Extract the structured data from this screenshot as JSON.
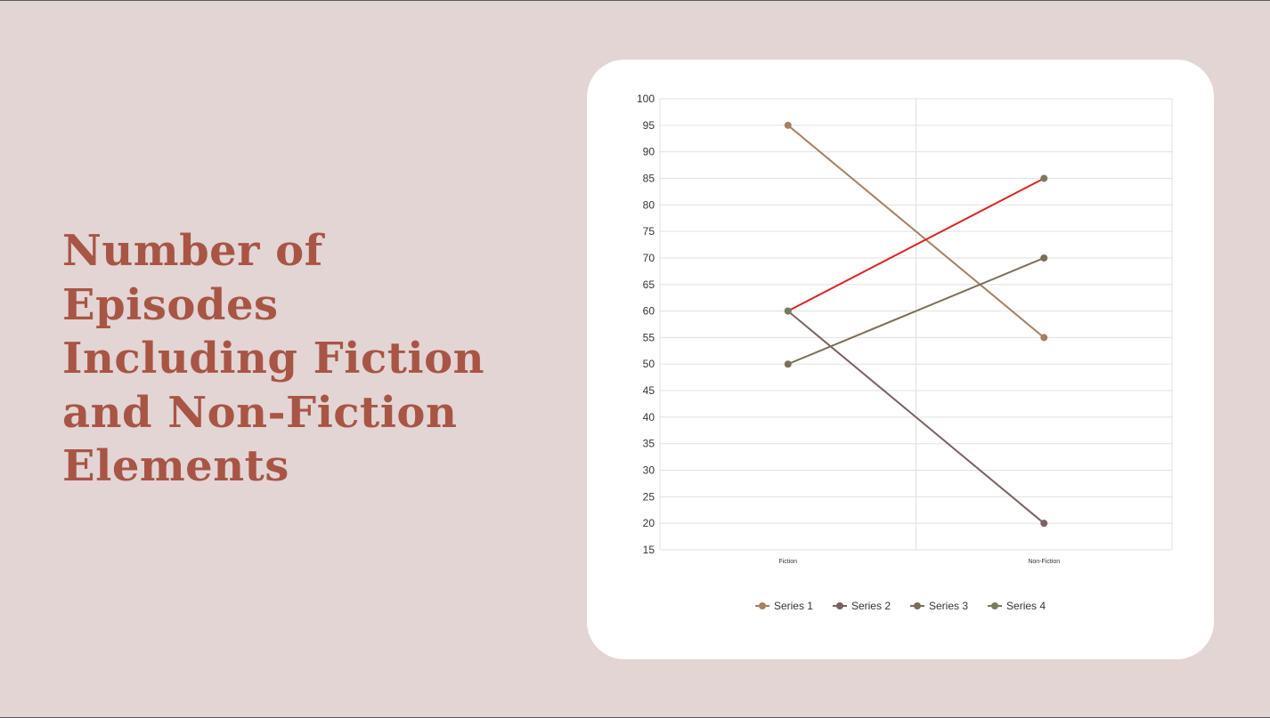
{
  "slide": {
    "title": "Number of Episodes Including Fiction and Non-Fiction Elements"
  },
  "colors": {
    "background": "#e2d5d4",
    "title": "#a85545",
    "card": "#ffffff",
    "gridline": "#e0e0e0"
  },
  "chart_data": {
    "type": "line",
    "title": "",
    "xlabel": "",
    "ylabel": "",
    "categories": [
      "Fiction",
      "Non-Fiction"
    ],
    "ylim": [
      15,
      100
    ],
    "ytick_step": 5,
    "grid": true,
    "legend_position": "bottom",
    "series": [
      {
        "name": "Series 1",
        "values": [
          95,
          55
        ],
        "color": "#a88060",
        "line_color": "#a88060"
      },
      {
        "name": "Series 2",
        "values": [
          60,
          20
        ],
        "color": "#7a6060",
        "line_color": "#7a6060"
      },
      {
        "name": "Series 3",
        "values": [
          50,
          70
        ],
        "color": "#7a6e58",
        "line_color": "#7a6e58"
      },
      {
        "name": "Series 4",
        "values": [
          60,
          85
        ],
        "color": "#7a7a60",
        "line_color": "#dd2222"
      }
    ]
  }
}
